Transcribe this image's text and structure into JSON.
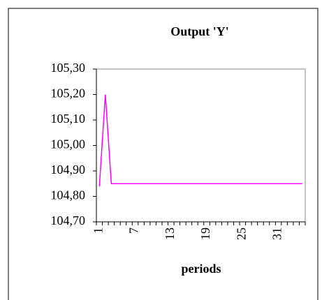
{
  "chart_data": {
    "type": "line",
    "title": "Output 'Y'",
    "x_label": "periods",
    "categories": [
      "1",
      null,
      null,
      null,
      null,
      null,
      "7",
      null,
      null,
      null,
      null,
      null,
      "13",
      null,
      null,
      null,
      null,
      null,
      "19",
      null,
      null,
      null,
      null,
      null,
      "25",
      null,
      null,
      null,
      null,
      null,
      "31",
      null,
      null,
      null,
      null
    ],
    "series": [
      {
        "name": "Y",
        "color": "#ff00ff",
        "values": [
          104.84,
          105.2,
          104.85,
          104.85,
          104.85,
          104.85,
          104.85,
          104.85,
          104.85,
          104.85,
          104.85,
          104.85,
          104.85,
          104.85,
          104.85,
          104.85,
          104.85,
          104.85,
          104.85,
          104.85,
          104.85,
          104.85,
          104.85,
          104.85,
          104.85,
          104.85,
          104.85,
          104.85,
          104.85,
          104.85,
          104.85,
          104.85,
          104.85,
          104.85,
          104.85
        ]
      }
    ],
    "ylim": [
      104.7,
      105.3
    ],
    "yticks": [
      {
        "value": 104.7,
        "label": "104,70"
      },
      {
        "value": 104.8,
        "label": "104,80"
      },
      {
        "value": 104.9,
        "label": "104,90"
      },
      {
        "value": 105.0,
        "label": "105,00"
      },
      {
        "value": 105.1,
        "label": "105,10"
      },
      {
        "value": 105.2,
        "label": "105,20"
      },
      {
        "value": 105.3,
        "label": "105,30"
      }
    ],
    "grid": false
  }
}
